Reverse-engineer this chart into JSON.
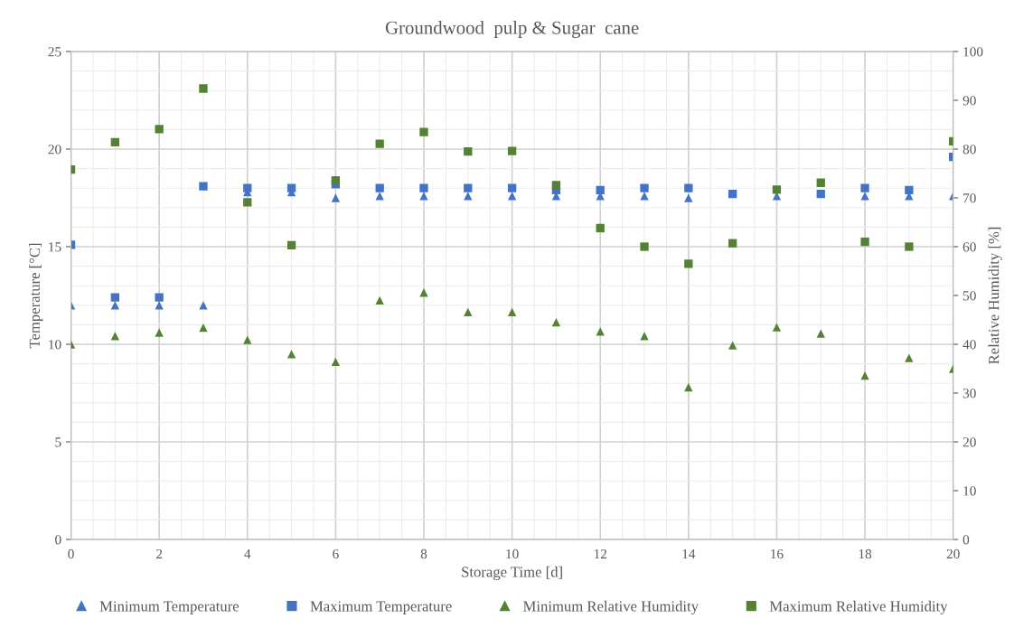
{
  "chart_data": {
    "type": "scatter",
    "title": "Groundwood  pulp & Sugar  cane",
    "xlabel": "Storage Time [d]",
    "ylabel": "Temperature [°C]",
    "y2label": "Relative Humidity [%]",
    "x": [
      0,
      1,
      2,
      3,
      4,
      5,
      6,
      7,
      8,
      9,
      10,
      11,
      12,
      13,
      14,
      15,
      16,
      17,
      18,
      19,
      20
    ],
    "xlim": [
      0,
      20
    ],
    "xticks": [
      0,
      2,
      4,
      6,
      8,
      10,
      12,
      14,
      16,
      18,
      20
    ],
    "ylim": [
      0,
      25
    ],
    "yticks": [
      0,
      5,
      10,
      15,
      20,
      25
    ],
    "y2lim": [
      0,
      100
    ],
    "y2ticks": [
      0,
      10,
      20,
      30,
      40,
      50,
      60,
      70,
      80,
      90,
      100
    ],
    "grid": true,
    "legend": "bottom",
    "series": [
      {
        "name": "Minimum Temperature",
        "color": "#4472c4",
        "marker": "triangle",
        "values": [
          12,
          12,
          12,
          12,
          17.8,
          17.8,
          17.5,
          17.6,
          17.6,
          17.6,
          17.6,
          17.6,
          17.6,
          17.6,
          17.5,
          null,
          17.6,
          null,
          17.6,
          17.6,
          17.6
        ]
      },
      {
        "name": "Maximum Temperature",
        "color": "#4472c4",
        "marker": "square",
        "values": [
          15.1,
          12.4,
          12.4,
          18.1,
          18.0,
          18.0,
          18.2,
          18.0,
          18.0,
          18.0,
          18.0,
          17.9,
          17.9,
          18.0,
          18.0,
          17.7,
          null,
          17.7,
          18.0,
          17.9,
          19.6
        ]
      },
      {
        "name": "Minimum Relative Humidity",
        "color": "#548235",
        "marker": "triangle",
        "axis": "y2",
        "values": [
          40,
          41.7,
          42.4,
          43.4,
          40.9,
          38,
          36.4,
          49,
          50.6,
          46.6,
          46.6,
          44.5,
          42.6,
          41.7,
          31.2,
          39.8,
          43.5,
          42.2,
          33.6,
          37.2,
          35
        ]
      },
      {
        "name": "Maximum Relative Humidity",
        "color": "#548235",
        "marker": "square",
        "axis": "y2",
        "values": [
          75.8,
          81.4,
          84.1,
          92.4,
          69.1,
          60.3,
          73.6,
          81.1,
          83.5,
          79.5,
          79.6,
          72.6,
          63.8,
          60,
          56.5,
          60.7,
          71.7,
          73.1,
          61,
          60,
          81.6
        ]
      }
    ]
  }
}
